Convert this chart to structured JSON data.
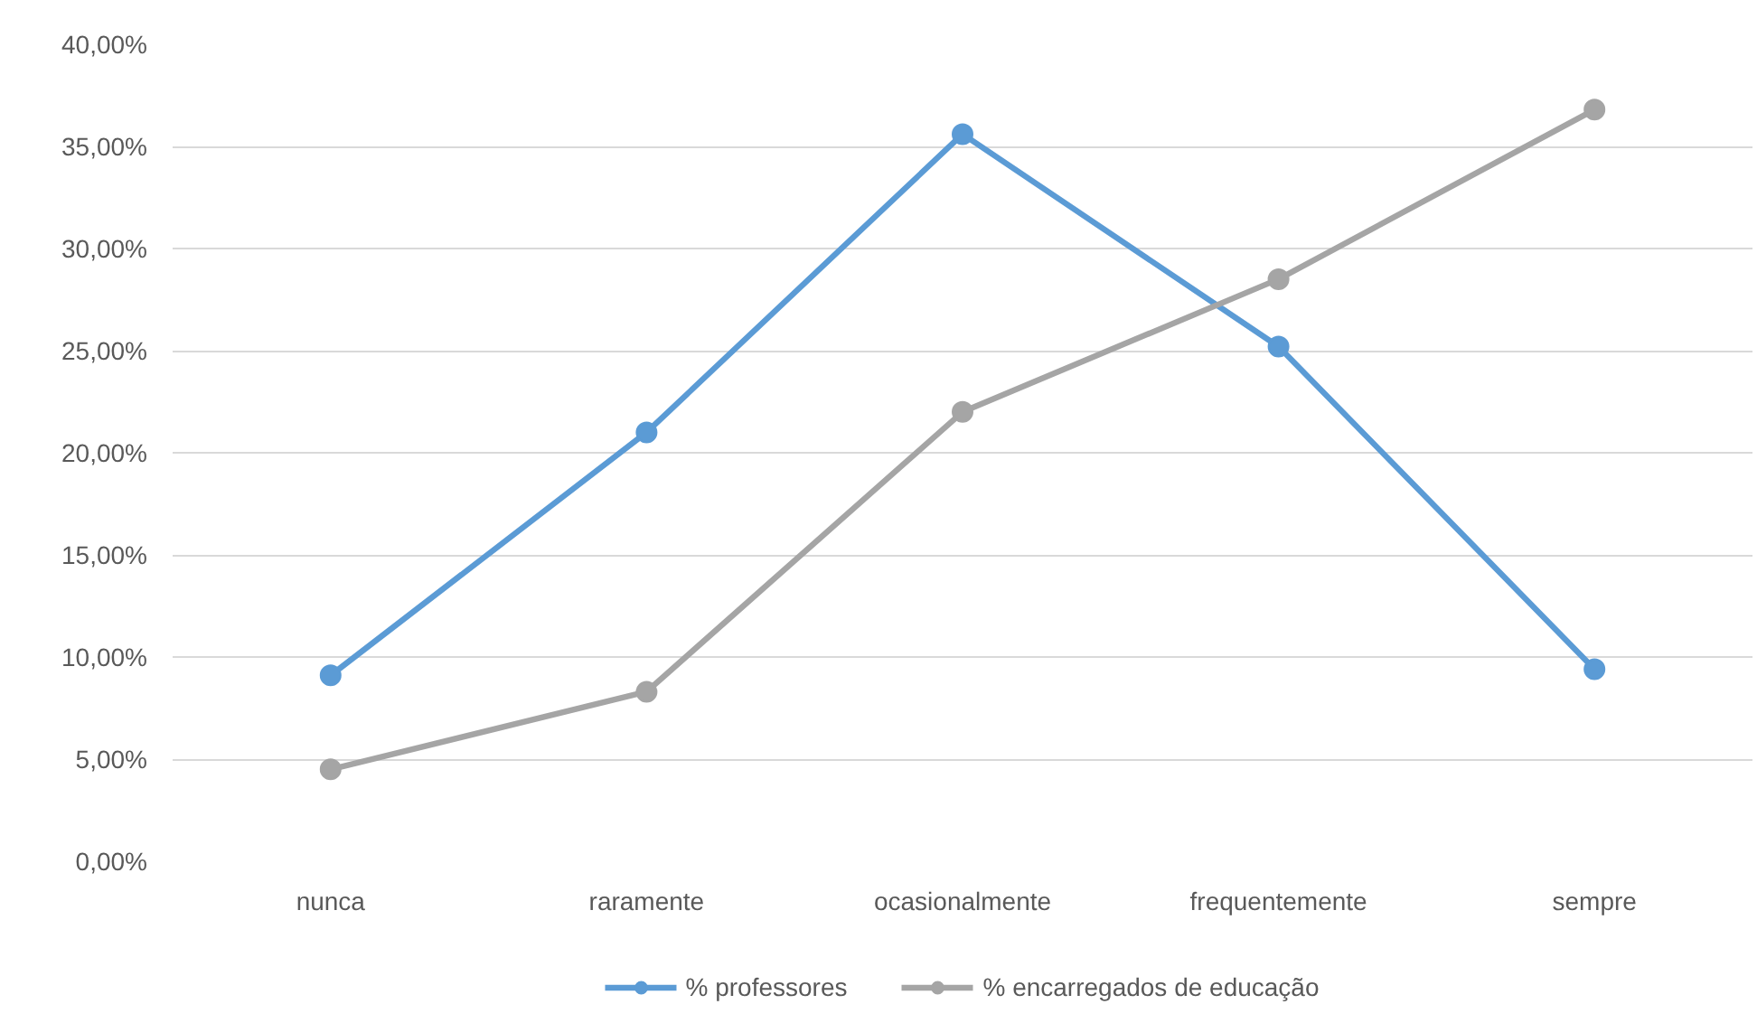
{
  "chart_data": {
    "type": "line",
    "categories": [
      "nunca",
      "raramente",
      "ocasionalmente",
      "frequentemente",
      "sempre"
    ],
    "series": [
      {
        "name": "% professores",
        "color": "#5b9bd5",
        "values": [
          9.1,
          21.0,
          35.6,
          25.2,
          9.4
        ]
      },
      {
        "name": "% encarregados de educação",
        "color": "#a5a5a5",
        "values": [
          4.5,
          8.3,
          22.0,
          28.5,
          36.8
        ]
      }
    ],
    "ylim": [
      0,
      40
    ],
    "yticks": [
      {
        "value": 0,
        "label": "0,00%"
      },
      {
        "value": 5,
        "label": "5,00%"
      },
      {
        "value": 10,
        "label": "10,00%"
      },
      {
        "value": 15,
        "label": "15,00%"
      },
      {
        "value": 20,
        "label": "20,00%"
      },
      {
        "value": 25,
        "label": "25,00%"
      },
      {
        "value": 30,
        "label": "30,00%"
      },
      {
        "value": 35,
        "label": "35,00%"
      },
      {
        "value": 40,
        "label": "40,00%"
      }
    ],
    "grid": "y",
    "legend": "bottom",
    "marker": "circle",
    "line_style": "solid"
  }
}
